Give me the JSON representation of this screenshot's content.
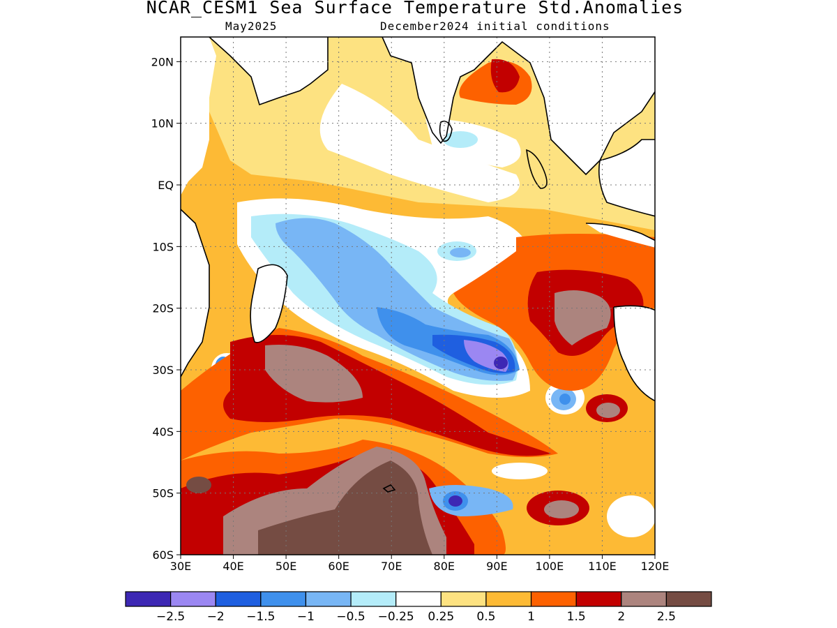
{
  "header": {
    "title": "NCAR_CESM1 Sea Surface Temperature Std.Anomalies",
    "valid_month": "May2025",
    "init": "December2024 initial conditions"
  },
  "map": {
    "lat_labels": [
      "20N",
      "10N",
      "EQ",
      "10S",
      "20S",
      "30S",
      "40S",
      "50S",
      "60S"
    ],
    "lat_values": [
      20,
      10,
      0,
      -10,
      -20,
      -30,
      -40,
      -50,
      -60
    ],
    "lon_labels": [
      "30E",
      "40E",
      "50E",
      "60E",
      "70E",
      "80E",
      "90E",
      "100E",
      "110E",
      "120E"
    ],
    "lon_values": [
      30,
      40,
      50,
      60,
      70,
      80,
      90,
      100,
      110,
      120
    ],
    "lon_range": [
      30,
      120
    ],
    "lat_range": [
      -60,
      24
    ],
    "grid": true
  },
  "colorbar": {
    "colors": [
      "#3d28b4",
      "#9b87f2",
      "#1f5fe0",
      "#3f90ec",
      "#78b6f5",
      "#b4ecf9",
      "#ffffff",
      "#fde281",
      "#fdba35",
      "#fd6100",
      "#c20000",
      "#ac847e",
      "#754c43"
    ],
    "tick_labels": [
      "−2.5",
      "−2",
      "−1.5",
      "−1",
      "−0.5",
      "−0.25",
      "0.25",
      "0.5",
      "1",
      "1.5",
      "2",
      "2.5"
    ],
    "tick_values": [
      -2.5,
      -2,
      -1.5,
      -1,
      -0.5,
      -0.25,
      0.25,
      0.5,
      1,
      1.5,
      2,
      2.5
    ]
  }
}
